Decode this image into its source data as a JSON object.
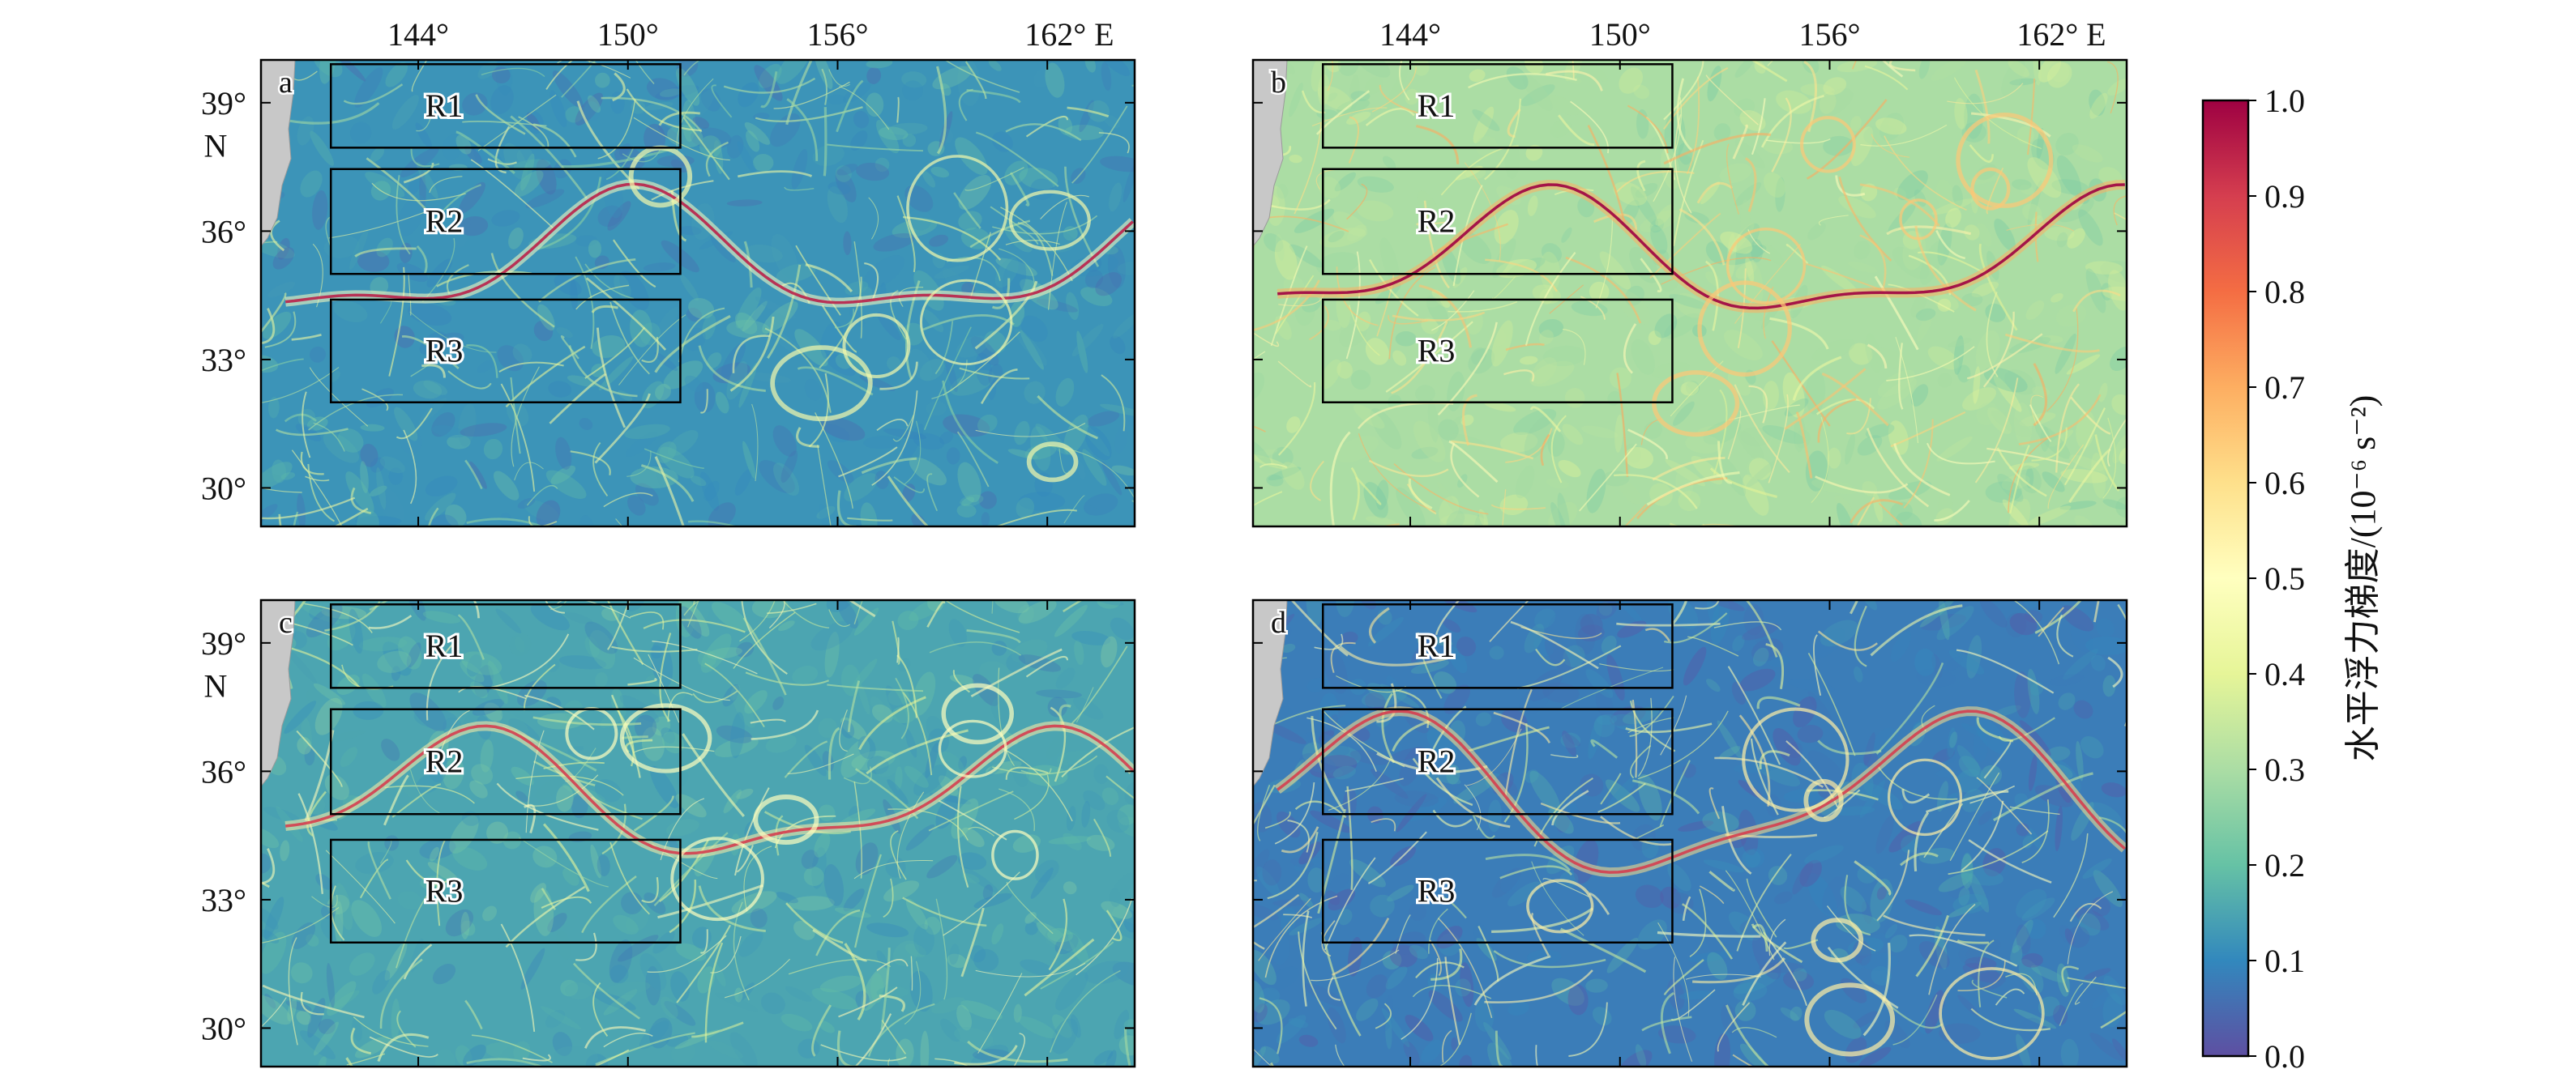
{
  "chart_data": {
    "type": "heatmap",
    "description_of_panels": "four map panels of horizontal buoyancy gradient magnitude over the Kuroshio Extension region",
    "x": {
      "ticks": [
        144,
        150,
        156,
        162
      ],
      "tick_labels": [
        "144°",
        "150°",
        "156°",
        "162° E"
      ],
      "range": [
        139.5,
        164.5
      ]
    },
    "y": {
      "ticks": [
        30,
        33,
        36,
        39
      ],
      "tick_labels": [
        "30°",
        "33°",
        "36°",
        "39°"
      ],
      "unit_label": "N",
      "range": [
        29.1,
        40.0
      ]
    },
    "colorbar": {
      "label": "水平浮力梯度/(10⁻⁶ s⁻²)",
      "min": 0.0,
      "max": 1.0,
      "ticks": [
        0.0,
        0.1,
        0.2,
        0.3,
        0.4,
        0.5,
        0.6,
        0.7,
        0.8,
        0.9,
        1.0
      ],
      "tick_labels": [
        "0.0",
        "0.1",
        "0.2",
        "0.3",
        "0.4",
        "0.5",
        "0.6",
        "0.7",
        "0.8",
        "0.9",
        "1.0"
      ],
      "colormap_stops": [
        "#5e4fa2",
        "#3288bd",
        "#66c2a5",
        "#abdda4",
        "#e6f598",
        "#ffffbf",
        "#fee08b",
        "#fdae61",
        "#f46d43",
        "#d53e4f",
        "#9e0142"
      ]
    },
    "regions": [
      {
        "name": "R1",
        "lon": [
          141.5,
          151.5
        ],
        "lat": [
          37.95,
          40.3
        ]
      },
      {
        "name": "R2",
        "lon": [
          141.5,
          151.5
        ],
        "lat": [
          35.0,
          37.45
        ]
      },
      {
        "name": "R3",
        "lon": [
          141.5,
          151.5
        ],
        "lat": [
          32.0,
          34.4
        ]
      }
    ],
    "panels": [
      {
        "label": "a",
        "background_level": 0.12,
        "filament_level": 0.35,
        "max_level": 0.95
      },
      {
        "label": "b",
        "background_level": 0.3,
        "filament_level": 0.55,
        "max_level": 1.0
      },
      {
        "label": "c",
        "background_level": 0.15,
        "filament_level": 0.4,
        "max_level": 0.9
      },
      {
        "label": "d",
        "background_level": 0.08,
        "filament_level": 0.45,
        "max_level": 0.9
      }
    ]
  },
  "colors": {
    "land": "#c8c8c8",
    "frame": "#000000"
  }
}
